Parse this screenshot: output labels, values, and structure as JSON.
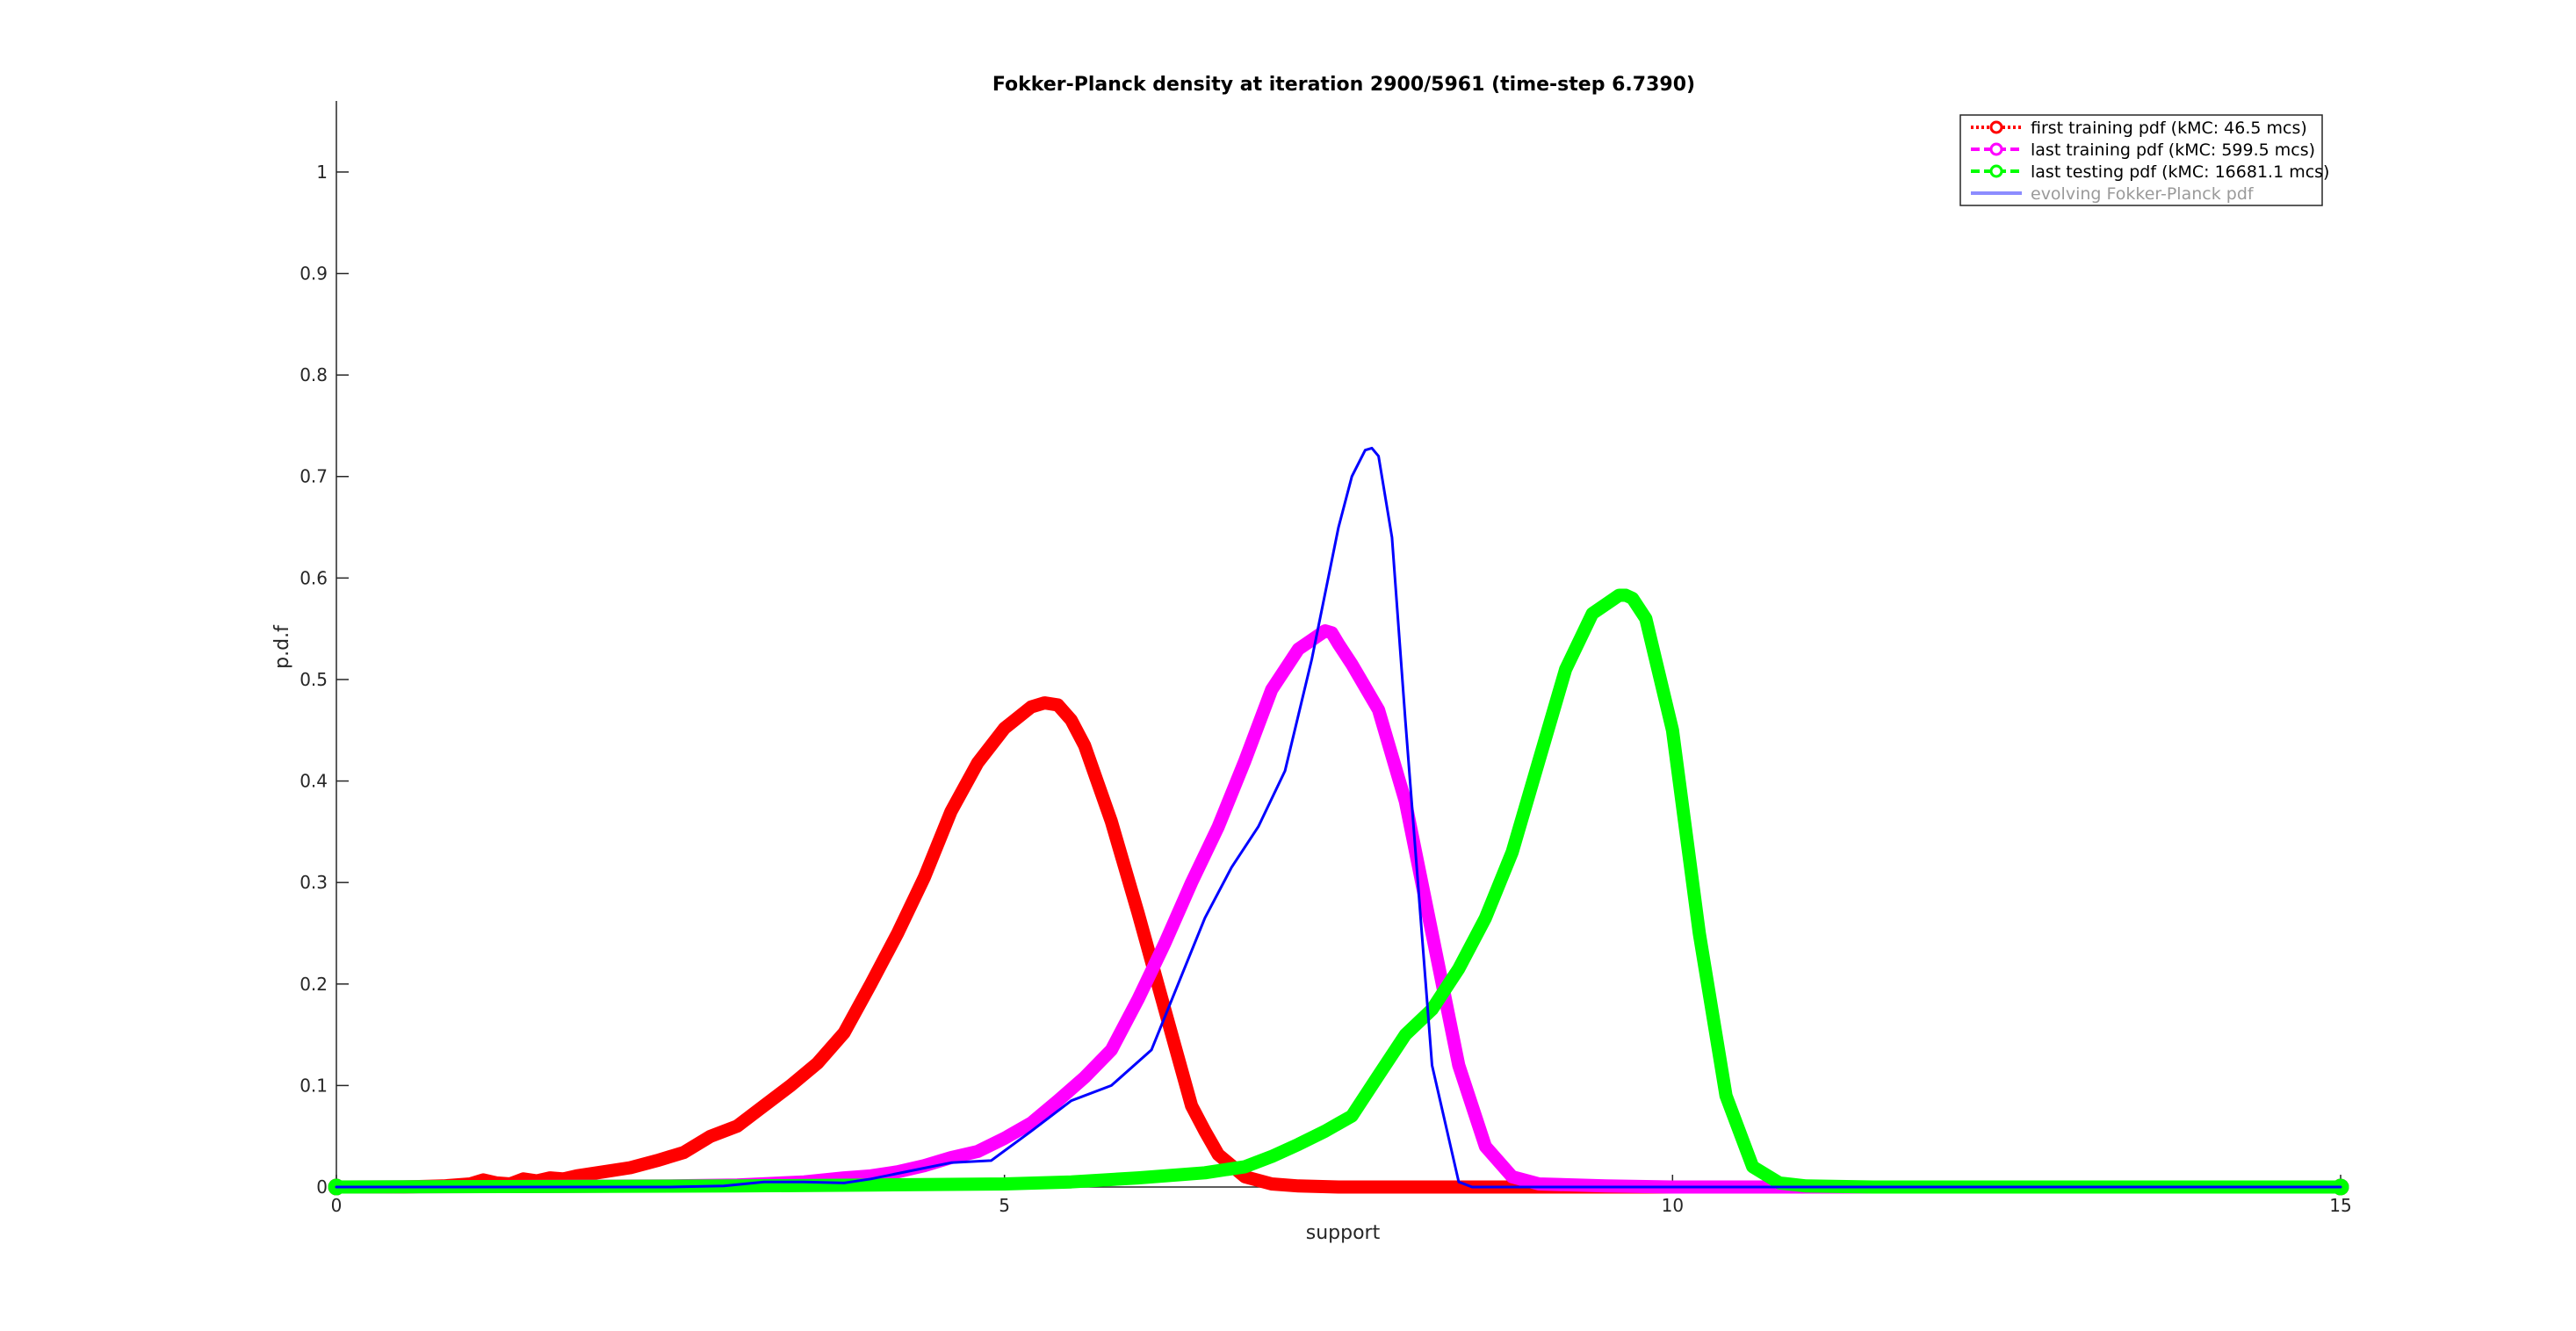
{
  "chart_data": {
    "type": "line",
    "title": "Fokker-Planck density at iteration 2900/5961 (time-step 6.7390)",
    "xlabel": "support",
    "ylabel": "p.d.f",
    "xlim": [
      0,
      15
    ],
    "ylim": [
      0,
      1.07
    ],
    "xticks": [
      0,
      5,
      10,
      15
    ],
    "yticks": [
      0,
      0.1,
      0.2,
      0.3,
      0.4,
      0.5,
      0.6,
      0.7,
      0.8,
      0.9,
      1
    ],
    "grid": false,
    "legend_position": "top-right",
    "series": [
      {
        "name": "first training pdf (kMC: 46.5 mcs)",
        "color": "#ff0000",
        "line_style": "dotted",
        "marker": "circle",
        "x": [
          0,
          0.5,
          0.8,
          1.0,
          1.1,
          1.2,
          1.3,
          1.4,
          1.5,
          1.6,
          1.7,
          1.8,
          2.0,
          2.2,
          2.4,
          2.6,
          2.8,
          3.0,
          3.2,
          3.4,
          3.6,
          3.8,
          4.0,
          4.2,
          4.4,
          4.6,
          4.8,
          5.0,
          5.2,
          5.3,
          5.4,
          5.5,
          5.6,
          5.8,
          6.0,
          6.2,
          6.4,
          6.5,
          6.6,
          6.8,
          7.0,
          7.2,
          7.5,
          8.0,
          8.5,
          9.0,
          10,
          12,
          15
        ],
        "values": [
          0,
          0,
          0.001,
          0.003,
          0.007,
          0.004,
          0.003,
          0.008,
          0.006,
          0.009,
          0.008,
          0.011,
          0.015,
          0.019,
          0.026,
          0.034,
          0.05,
          0.06,
          0.08,
          0.1,
          0.122,
          0.152,
          0.2,
          0.25,
          0.305,
          0.37,
          0.418,
          0.452,
          0.473,
          0.477,
          0.475,
          0.46,
          0.435,
          0.36,
          0.27,
          0.175,
          0.08,
          0.055,
          0.032,
          0.01,
          0.003,
          0.001,
          0,
          0,
          0,
          0,
          0,
          0,
          0
        ]
      },
      {
        "name": "last training pdf (kMC: 599.5 mcs)",
        "color": "#ff00ff",
        "line_style": "dashed",
        "marker": "circle",
        "x": [
          0,
          2.5,
          3.0,
          3.5,
          3.8,
          4.0,
          4.2,
          4.4,
          4.6,
          4.8,
          5.0,
          5.2,
          5.4,
          5.6,
          5.8,
          6.0,
          6.2,
          6.4,
          6.6,
          6.8,
          7.0,
          7.2,
          7.4,
          7.45,
          7.5,
          7.6,
          7.8,
          8.0,
          8.2,
          8.4,
          8.6,
          8.8,
          9.0,
          9.5,
          10,
          11,
          12,
          15
        ],
        "values": [
          0,
          0.001,
          0.002,
          0.005,
          0.009,
          0.011,
          0.015,
          0.021,
          0.029,
          0.035,
          0.048,
          0.063,
          0.085,
          0.108,
          0.135,
          0.185,
          0.24,
          0.3,
          0.355,
          0.42,
          0.49,
          0.53,
          0.548,
          0.546,
          0.535,
          0.515,
          0.47,
          0.38,
          0.25,
          0.12,
          0.04,
          0.01,
          0.003,
          0.001,
          0,
          0,
          0,
          0
        ]
      },
      {
        "name": "last testing pdf (kMC: 16681.1 mcs)",
        "color": "#00ff00",
        "line_style": "dashed",
        "marker": "circle",
        "x": [
          0,
          3.0,
          4.0,
          5.0,
          5.5,
          6.0,
          6.5,
          6.8,
          7.0,
          7.2,
          7.4,
          7.6,
          7.8,
          8.0,
          8.2,
          8.4,
          8.6,
          8.8,
          9.0,
          9.2,
          9.4,
          9.6,
          9.65,
          9.7,
          9.8,
          10.0,
          10.2,
          10.4,
          10.6,
          10.8,
          11.0,
          11.5,
          12,
          15
        ],
        "values": [
          0,
          0.001,
          0.002,
          0.003,
          0.005,
          0.009,
          0.014,
          0.02,
          0.03,
          0.042,
          0.055,
          0.07,
          0.11,
          0.15,
          0.175,
          0.215,
          0.265,
          0.33,
          0.42,
          0.51,
          0.565,
          0.583,
          0.583,
          0.58,
          0.56,
          0.45,
          0.25,
          0.09,
          0.02,
          0.004,
          0.001,
          0,
          0,
          0
        ]
      },
      {
        "name": "evolving Fokker-Planck pdf",
        "color": "#0000ff",
        "legend_color": "#8c8cff",
        "line_style": "solid",
        "x": [
          0,
          2.0,
          2.5,
          2.9,
          3.2,
          3.5,
          3.8,
          4.0,
          4.3,
          4.6,
          4.9,
          5.2,
          5.5,
          5.8,
          6.1,
          6.3,
          6.5,
          6.7,
          6.9,
          7.1,
          7.3,
          7.5,
          7.6,
          7.7,
          7.75,
          7.8,
          7.9,
          8.0,
          8.2,
          8.4,
          8.5,
          8.6,
          9.0,
          10,
          12,
          15
        ],
        "values": [
          0,
          0,
          0,
          0.001,
          0.005,
          0.005,
          0.004,
          0.008,
          0.016,
          0.024,
          0.026,
          0.055,
          0.085,
          0.1,
          0.135,
          0.2,
          0.265,
          0.315,
          0.355,
          0.41,
          0.52,
          0.65,
          0.7,
          0.726,
          0.728,
          0.72,
          0.64,
          0.46,
          0.12,
          0.005,
          0,
          0,
          0,
          0,
          0,
          0
        ]
      }
    ]
  }
}
